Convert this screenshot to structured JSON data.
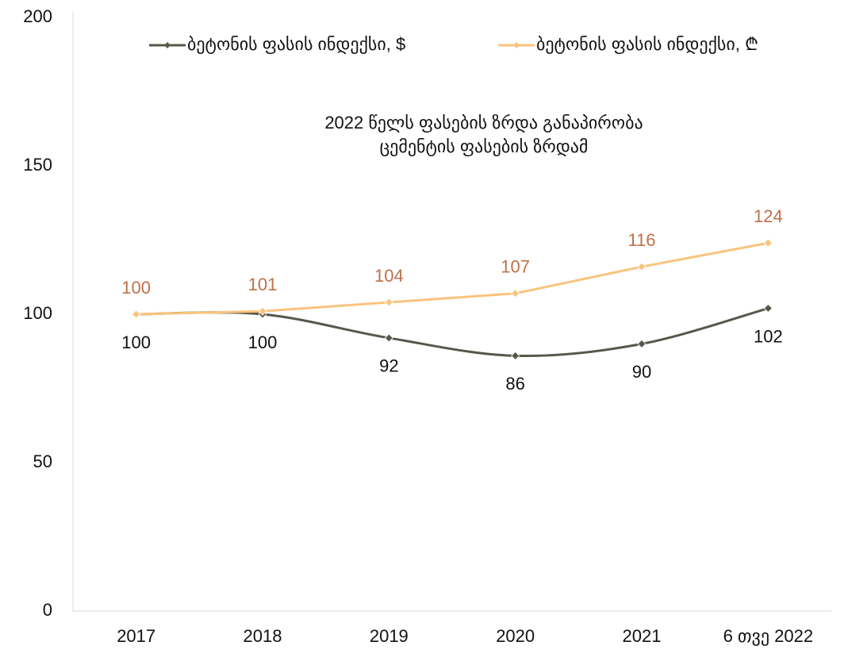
{
  "chart_data": {
    "type": "line",
    "categories": [
      "2017",
      "2018",
      "2019",
      "2020",
      "2021",
      "6 თვე 2022"
    ],
    "series": [
      {
        "name": "ბეტონის ფასის ინდექსი, $",
        "color": "#59574a",
        "label_color": "#111111",
        "smooth": true,
        "values": [
          100,
          100,
          92,
          86,
          90,
          102
        ]
      },
      {
        "name": "ბეტონის ფასის ინდექსი, ₾",
        "color": "#f9c47c",
        "label_color": "#c0704a",
        "smooth": false,
        "values": [
          100,
          101,
          104,
          107,
          116,
          124
        ]
      }
    ],
    "annotation": [
      "2022 წელს ფასების ზრდა განაპირობა",
      "ცემენტის ფასების ზრდამ"
    ],
    "ylim": [
      0,
      200
    ],
    "yticks": [
      0,
      50,
      100,
      150,
      200
    ],
    "legend": "top"
  }
}
